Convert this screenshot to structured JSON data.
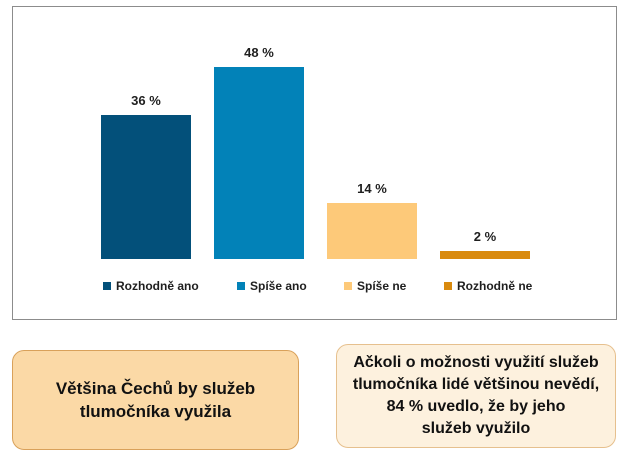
{
  "chart_data": {
    "type": "bar",
    "categories": [
      "Rozhodně ano",
      "Spíše ano",
      "Spíše ne",
      "Rozhodně ne"
    ],
    "values": [
      36,
      48,
      14,
      2
    ],
    "value_labels": [
      "36 %",
      "48 %",
      "14 %",
      "2 %"
    ],
    "colors": [
      "#03507a",
      "#0282b8",
      "#fdc979",
      "#d98a0e"
    ],
    "ylim": [
      0,
      50
    ],
    "grid": false,
    "legend_position": "bottom",
    "title": "",
    "xlabel": "",
    "ylabel": ""
  },
  "callouts": {
    "left": {
      "lines": [
        "Většina Čechů by služeb",
        "tlumočníka využila"
      ]
    },
    "right": {
      "lines": [
        "Ačkoli o možnosti využití služeb",
        "tlumočníka lidé většinou nevědí,",
        "84 % uvedlo, že by jeho",
        "služeb využilo"
      ]
    }
  }
}
